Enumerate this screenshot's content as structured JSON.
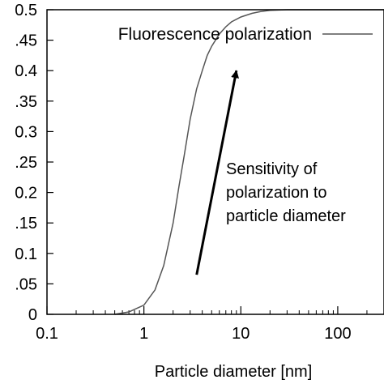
{
  "chart_data": {
    "type": "line",
    "xlabel": "Particle diameter [nm]",
    "ylabel": "",
    "x_scale": "log",
    "xlim": [
      0.1,
      300
    ],
    "ylim": [
      0,
      0.5
    ],
    "x_ticks": [
      {
        "value": 0.1,
        "label": "0.1"
      },
      {
        "value": 1,
        "label": "1"
      },
      {
        "value": 10,
        "label": "10"
      },
      {
        "value": 100,
        "label": "100"
      }
    ],
    "y_ticks": [
      {
        "value": 0,
        "label": "0"
      },
      {
        "value": 0.05,
        "label": ".05"
      },
      {
        "value": 0.1,
        "label": "0.1"
      },
      {
        "value": 0.15,
        "label": ".15"
      },
      {
        "value": 0.2,
        "label": "0.2"
      },
      {
        "value": 0.25,
        "label": ".25"
      },
      {
        "value": 0.3,
        "label": "0.3"
      },
      {
        "value": 0.35,
        "label": ".35"
      },
      {
        "value": 0.4,
        "label": "0.4"
      },
      {
        "value": 0.45,
        "label": ".45"
      },
      {
        "value": 0.5,
        "label": "0.5"
      }
    ],
    "grid": false,
    "legend": {
      "position": "top-right"
    },
    "series": [
      {
        "name": "Fluorescence polarization",
        "color": "#555555",
        "x": [
          0.5,
          0.7,
          1.0,
          1.3,
          1.6,
          2.0,
          2.3,
          2.6,
          3.0,
          3.5,
          4.0,
          4.5,
          5.0,
          6.0,
          7.0,
          8.0,
          10,
          13,
          16,
          20,
          30,
          50,
          100,
          300
        ],
        "y": [
          0.0,
          0.004,
          0.015,
          0.04,
          0.08,
          0.15,
          0.21,
          0.26,
          0.32,
          0.37,
          0.4,
          0.425,
          0.44,
          0.46,
          0.472,
          0.48,
          0.488,
          0.494,
          0.497,
          0.499,
          0.5,
          0.5,
          0.5,
          0.5
        ]
      }
    ],
    "annotations": [
      {
        "kind": "arrow",
        "from": [
          3.5,
          0.065
        ],
        "to": [
          9.0,
          0.4
        ]
      },
      {
        "kind": "text",
        "lines": [
          "Sensitivity of",
          "polarization to",
          "particle diameter"
        ]
      }
    ]
  }
}
